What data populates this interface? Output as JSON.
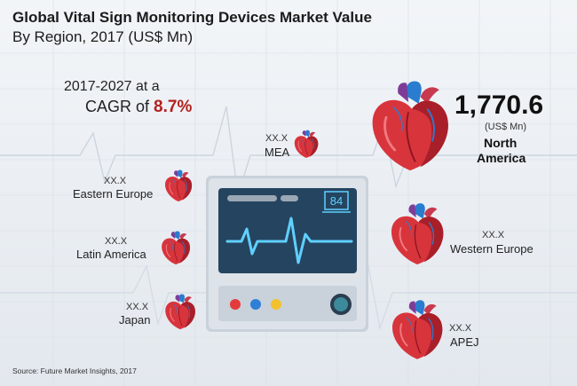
{
  "header": {
    "title": "Global Vital Sign Monitoring Devices Market Value",
    "subtitle": "By Region, 2017 (US$ Mn)"
  },
  "cagr": {
    "line1": "2017-2027 at a",
    "prefix": "CAGR of ",
    "value": "8.7%"
  },
  "monitor": {
    "reading": "84"
  },
  "source": "Source: Future Market Insights, 2017",
  "colors": {
    "accent": "#b3211e",
    "monitor_screen": "#25445f",
    "pulse": "#5fd0ff"
  },
  "chart_data": {
    "type": "other",
    "title": "Global Vital Sign Monitoring Devices Market Value",
    "subtitle": "By Region, 2017 (US$ Mn)",
    "regions": [
      {
        "name_line1": "North",
        "name_line2": "America",
        "value": "1,770.6",
        "unit": "(US$ Mn)",
        "icon": "heart-icon"
      },
      {
        "name": "MEA",
        "value": "XX.X",
        "icon": "heart-icon"
      },
      {
        "name": "Eastern Europe",
        "value": "XX.X",
        "icon": "heart-icon"
      },
      {
        "name": "Latin America",
        "value": "XX.X",
        "icon": "heart-icon"
      },
      {
        "name": "Japan",
        "value": "XX.X",
        "icon": "heart-icon"
      },
      {
        "name": "Western Europe",
        "value": "XX.X",
        "icon": "heart-icon"
      },
      {
        "name": "APEJ",
        "value": "XX.X",
        "icon": "heart-icon"
      }
    ]
  }
}
